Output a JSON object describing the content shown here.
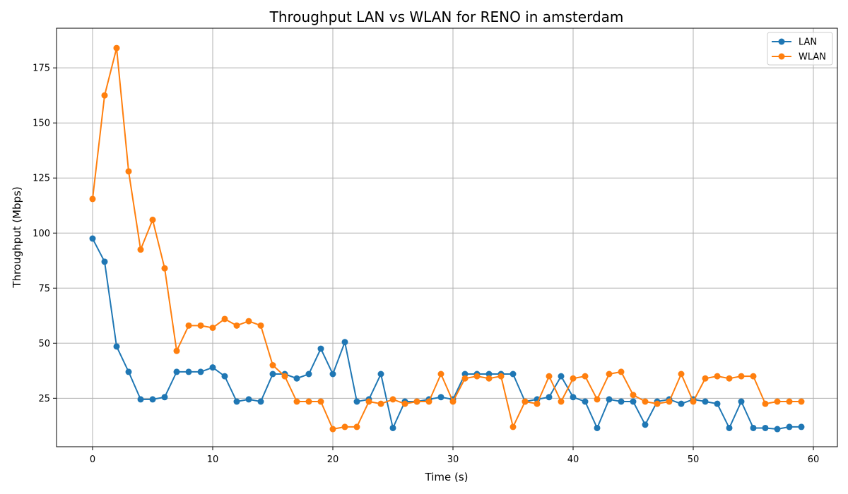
{
  "chart_data": {
    "type": "line",
    "title": "Throughput LAN vs WLAN for RENO in amsterdam",
    "xlabel": "Time (s)",
    "ylabel": "Throughput (Mbps)",
    "xlim": [
      -3,
      62
    ],
    "ylim": [
      3,
      193
    ],
    "xticks": [
      0,
      10,
      20,
      30,
      40,
      50,
      60
    ],
    "yticks": [
      25,
      50,
      75,
      100,
      125,
      150,
      175
    ],
    "grid": true,
    "legend_position": "top-right",
    "x": [
      0,
      1,
      2,
      3,
      4,
      5,
      6,
      7,
      8,
      9,
      10,
      11,
      12,
      13,
      14,
      15,
      16,
      17,
      18,
      19,
      20,
      21,
      22,
      23,
      24,
      25,
      26,
      27,
      28,
      29,
      30,
      31,
      32,
      33,
      34,
      35,
      36,
      37,
      38,
      39,
      40,
      41,
      42,
      43,
      44,
      45,
      46,
      47,
      48,
      49,
      50,
      51,
      52,
      53,
      54,
      55,
      56,
      57,
      58,
      59
    ],
    "series": [
      {
        "name": "LAN",
        "color": "#1f77b4",
        "values": [
          97.5,
          87,
          48.5,
          37,
          24.5,
          24.5,
          25.5,
          37,
          37,
          37,
          39,
          35,
          23.5,
          24.5,
          23.5,
          36,
          36,
          34,
          36,
          47.5,
          36,
          50.5,
          23.5,
          24.5,
          36,
          11.5,
          23.5,
          23.5,
          24.5,
          25.5,
          24.5,
          36,
          36,
          36,
          36,
          36,
          23.5,
          24.5,
          25.5,
          35,
          25.5,
          23.5,
          11.5,
          24.5,
          23.5,
          23.5,
          13,
          23.5,
          24.5,
          22.5,
          24.5,
          23.5,
          22.5,
          11.5,
          23.5,
          11.5,
          11.5,
          11,
          12,
          12
        ]
      },
      {
        "name": "WLAN",
        "color": "#ff7f0e",
        "values": [
          115.5,
          162.5,
          184,
          128,
          92.5,
          106,
          84,
          46.5,
          58,
          58,
          57,
          61,
          58,
          60,
          58,
          40,
          35,
          23.5,
          23.5,
          23.5,
          11,
          12,
          12,
          23.5,
          22.5,
          24.5,
          22.5,
          23.5,
          23.5,
          36,
          23.5,
          34,
          35,
          34,
          35,
          12,
          23.5,
          22.5,
          35,
          23.5,
          34,
          35,
          24.5,
          36,
          37,
          26.5,
          23.5,
          22.5,
          23.5,
          36,
          23.5,
          34,
          35,
          34,
          35,
          35,
          22.5,
          23.5,
          23.5,
          23.5
        ]
      }
    ]
  }
}
